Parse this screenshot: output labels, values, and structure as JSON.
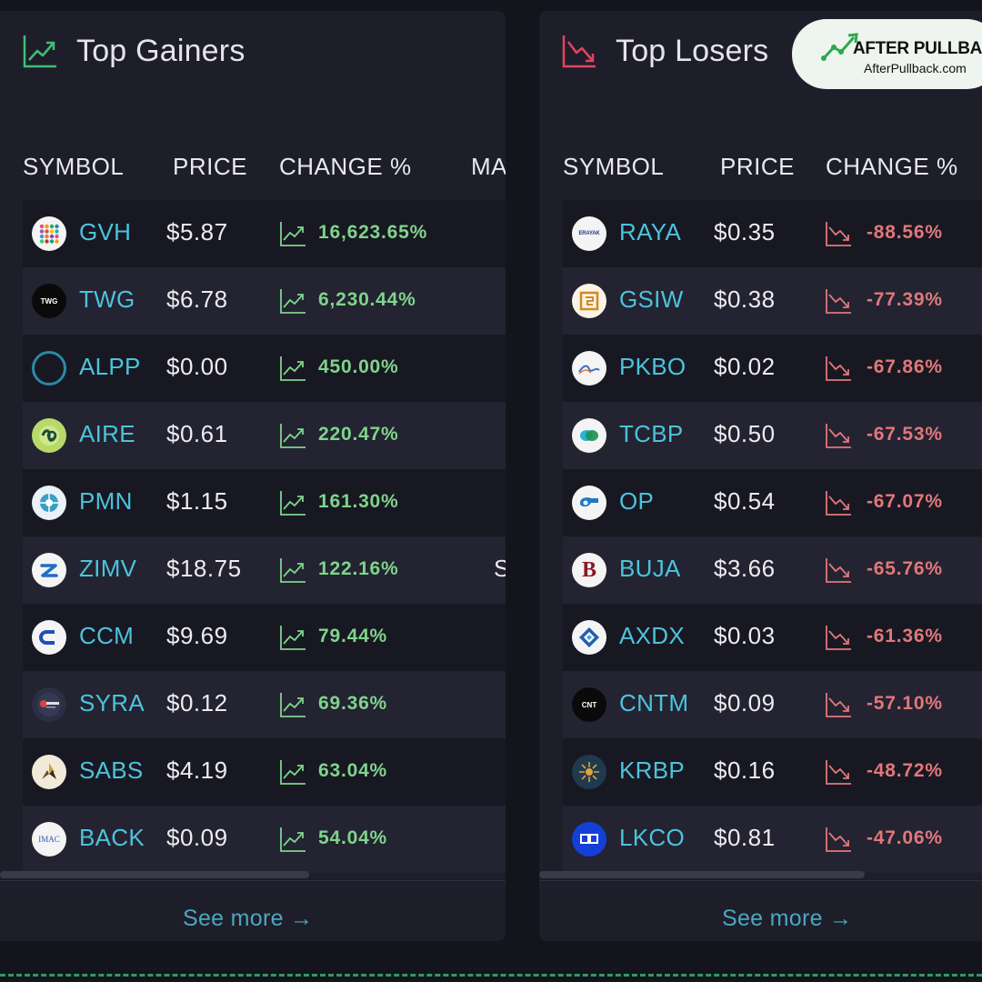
{
  "gainers": {
    "title": "Top Gainers",
    "columns": {
      "symbol": "SYMBOL",
      "price": "PRICE",
      "change": "CHANGE %",
      "market_cap_partial": "MA"
    },
    "rows": [
      {
        "symbol": "GVH",
        "price": "$5.87",
        "change": "16,623.65%",
        "logo": "dots-grid-logo"
      },
      {
        "symbol": "TWG",
        "price": "$6.78",
        "change": "6,230.44%",
        "logo": "twg-logo",
        "logo_text": "TWG"
      },
      {
        "symbol": "ALPP",
        "price": "$0.00",
        "change": "450.00%",
        "logo": "ring-logo"
      },
      {
        "symbol": "AIRE",
        "price": "$0.61",
        "change": "220.47%",
        "logo": "aire-logo"
      },
      {
        "symbol": "PMN",
        "price": "$1.15",
        "change": "161.30%",
        "logo": "pmn-logo"
      },
      {
        "symbol": "ZIMV",
        "price": "$18.75",
        "change": "122.16%",
        "logo": "zimv-logo"
      },
      {
        "symbol": "CCM",
        "price": "$9.69",
        "change": "79.44%",
        "logo": "ccm-logo"
      },
      {
        "symbol": "SYRA",
        "price": "$0.12",
        "change": "69.36%",
        "logo": "syra-logo"
      },
      {
        "symbol": "SABS",
        "price": "$4.19",
        "change": "63.04%",
        "logo": "sabs-logo"
      },
      {
        "symbol": "BACK",
        "price": "$0.09",
        "change": "54.04%",
        "logo": "imac-logo",
        "logo_text": "IMAC"
      }
    ],
    "partial_cell": "S",
    "see_more": "See more →"
  },
  "losers": {
    "title": "Top Losers",
    "columns": {
      "symbol": "SYMBOL",
      "price": "PRICE",
      "change": "CHANGE %"
    },
    "rows": [
      {
        "symbol": "RAYA",
        "price": "$0.35",
        "change": "-88.56%",
        "logo": "erayak-logo",
        "logo_text": "ERAYAK"
      },
      {
        "symbol": "GSIW",
        "price": "$0.38",
        "change": "-77.39%",
        "logo": "gsiw-logo"
      },
      {
        "symbol": "PKBO",
        "price": "$0.02",
        "change": "-67.86%",
        "logo": "pkbo-logo"
      },
      {
        "symbol": "TCBP",
        "price": "$0.50",
        "change": "-67.53%",
        "logo": "tcbp-logo"
      },
      {
        "symbol": "OP",
        "price": "$0.54",
        "change": "-67.07%",
        "logo": "op-logo"
      },
      {
        "symbol": "BUJA",
        "price": "$3.66",
        "change": "-65.76%",
        "logo": "buja-logo",
        "logo_text": "B"
      },
      {
        "symbol": "AXDX",
        "price": "$0.03",
        "change": "-61.36%",
        "logo": "axdx-logo"
      },
      {
        "symbol": "CNTM",
        "price": "$0.09",
        "change": "-57.10%",
        "logo": "cntm-logo",
        "logo_text": "CNT"
      },
      {
        "symbol": "KRBP",
        "price": "$0.16",
        "change": "-48.72%",
        "logo": "krbp-logo"
      },
      {
        "symbol": "LKCO",
        "price": "$0.81",
        "change": "-47.06%",
        "logo": "lkco-logo"
      }
    ],
    "see_more": "See more →"
  },
  "watermark": {
    "brand": "AFTER PULLBACK",
    "url": "AfterPullback.com"
  },
  "colors": {
    "background": "#14141c",
    "panel": "#1e1e2a",
    "gain": "#7fd48c",
    "loss": "#e2777a",
    "symbol": "#4cc3dc",
    "link": "#4aa7c0",
    "gain_icon": "#3fbf73",
    "loss_icon": "#e0455f"
  }
}
